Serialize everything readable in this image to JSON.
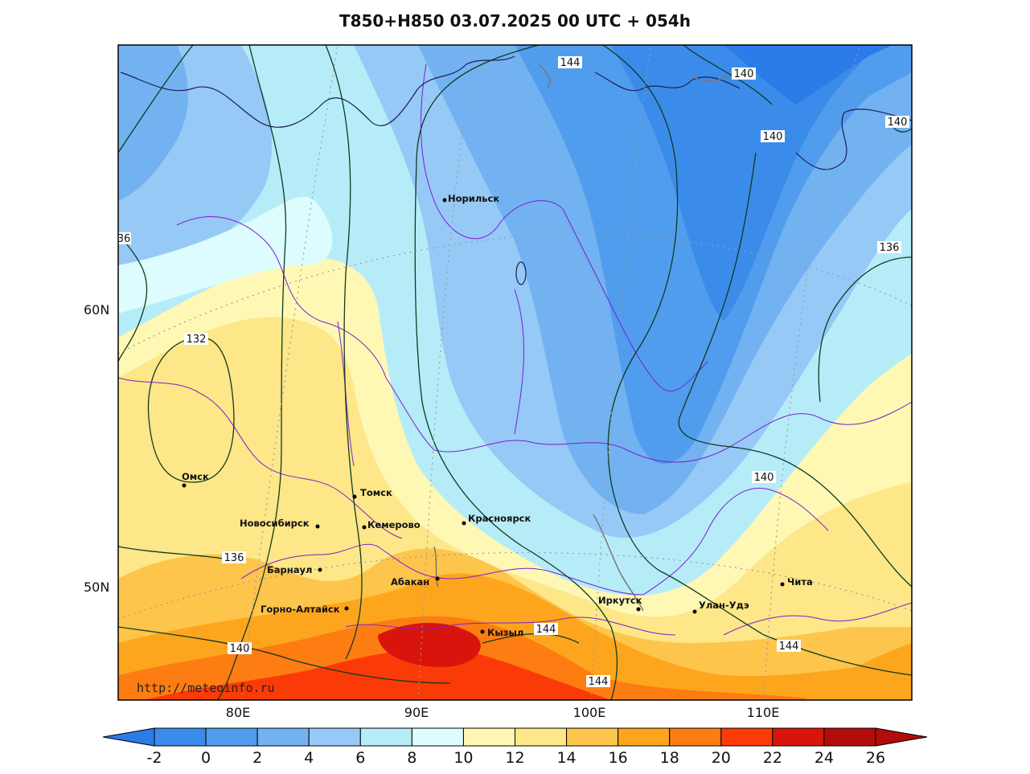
{
  "title": "T850+H850 03.07.2025 00 UTC + 054h",
  "watermark": "http://meteoinfo.ru",
  "lon_labels": [
    "80E",
    "90E",
    "100E",
    "110E"
  ],
  "lat_labels": [
    "60N",
    "50N"
  ],
  "cities": [
    {
      "name": "Норильск"
    },
    {
      "name": "Омск"
    },
    {
      "name": "Томск"
    },
    {
      "name": "Новосибирск"
    },
    {
      "name": "Кемерово"
    },
    {
      "name": "Красноярск"
    },
    {
      "name": "Барнаул"
    },
    {
      "name": "Абакан"
    },
    {
      "name": "Горно-Алтайск"
    },
    {
      "name": "Кызыл"
    },
    {
      "name": "Иркутск"
    },
    {
      "name": "Улан-Удэ"
    },
    {
      "name": "Чита"
    }
  ],
  "isohypse_labels": [
    "144",
    "140",
    "140",
    "140",
    "36",
    "136",
    "132",
    "136",
    "140",
    "140",
    "144",
    "144",
    "144"
  ],
  "colorbar": {
    "ticks": [
      "-2",
      "0",
      "2",
      "4",
      "6",
      "8",
      "10",
      "12",
      "14",
      "16",
      "18",
      "20",
      "22",
      "24",
      "26"
    ],
    "colors": [
      "#2b7be8",
      "#3b8cea",
      "#519ded",
      "#73b2f1",
      "#97c9f6",
      "#b6ecf8",
      "#dcfcfd",
      "#fef8b4",
      "#fde788",
      "#fdc54b",
      "#fda61d",
      "#fd7d12",
      "#fb3b07",
      "#d9140d",
      "#b40b0b"
    ]
  }
}
